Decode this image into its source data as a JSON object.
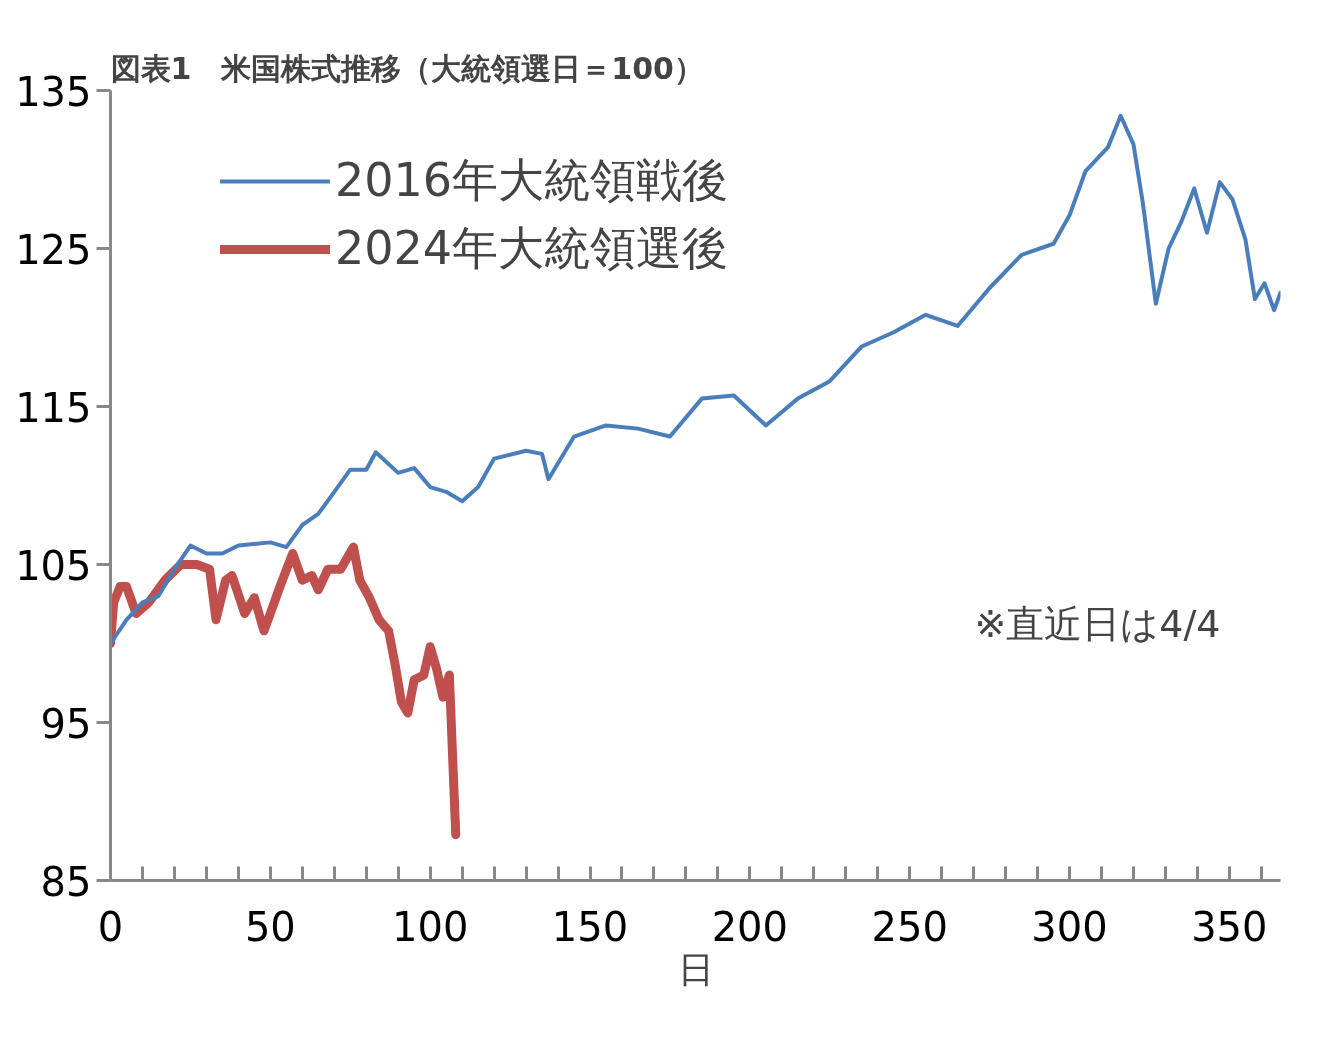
{
  "chart_data": {
    "type": "line",
    "title": "図表1　米国株式推移（大統領選日＝100）",
    "xlabel": "日",
    "xlim": [
      0,
      366
    ],
    "ylim": [
      85,
      135
    ],
    "xticks": [
      0,
      {
        "value": 10,
        "label": null
      },
      {
        "value": 20,
        "label": null
      },
      {
        "value": 30,
        "label": null
      },
      {
        "value": 40,
        "label": null
      },
      50,
      {
        "value": 60,
        "label": null
      },
      {
        "value": 70,
        "label": null
      },
      {
        "value": 80,
        "label": null
      },
      {
        "value": 90,
        "label": null
      },
      100,
      {
        "value": 110,
        "label": null
      },
      {
        "value": 120,
        "label": null
      },
      {
        "value": 130,
        "label": null
      },
      {
        "value": 140,
        "label": null
      },
      150,
      {
        "value": 160,
        "label": null
      },
      {
        "value": 170,
        "label": null
      },
      {
        "value": 180,
        "label": null
      },
      {
        "value": 190,
        "label": null
      },
      200,
      {
        "value": 210,
        "label": null
      },
      {
        "value": 220,
        "label": null
      },
      {
        "value": 230,
        "label": null
      },
      {
        "value": 240,
        "label": null
      },
      250,
      {
        "value": 260,
        "label": null
      },
      {
        "value": 270,
        "label": null
      },
      {
        "value": 280,
        "label": null
      },
      {
        "value": 290,
        "label": null
      },
      300,
      {
        "value": 310,
        "label": null
      },
      {
        "value": 320,
        "label": null
      },
      {
        "value": 330,
        "label": null
      },
      {
        "value": 340,
        "label": null
      },
      350,
      {
        "value": 360,
        "label": null
      }
    ],
    "yticks": [
      85,
      95,
      105,
      115,
      125,
      135
    ],
    "grid": false,
    "legend": "top left",
    "marker": "none",
    "line_style": "solid",
    "annotations": [
      "※直近日は4/4"
    ],
    "series": [
      {
        "name": "2016年大統領戦後",
        "color": "#4a7ebb",
        "x": [
          0,
          5,
          10,
          15,
          20,
          25,
          30,
          35,
          40,
          50,
          55,
          60,
          65,
          70,
          75,
          80,
          83,
          90,
          95,
          100,
          105,
          110,
          115,
          120,
          130,
          135,
          137,
          145,
          155,
          165,
          175,
          185,
          195,
          205,
          215,
          225,
          235,
          245,
          255,
          265,
          275,
          285,
          295,
          300,
          305,
          312,
          316,
          320,
          323,
          327,
          331,
          335,
          339,
          343,
          347,
          351,
          355,
          358,
          361,
          364,
          366
        ],
        "values": [
          100,
          101.5,
          102.6,
          103,
          104.7,
          106.2,
          105.7,
          105.7,
          106.2,
          106.4,
          106.1,
          107.5,
          108.2,
          109.6,
          111,
          111,
          112.1,
          110.8,
          111.1,
          109.9,
          109.6,
          109,
          109.9,
          111.7,
          112.2,
          112,
          110.4,
          113.1,
          113.8,
          113.6,
          113.1,
          115.5,
          115.7,
          113.8,
          115.5,
          116.6,
          118.8,
          119.7,
          120.8,
          120.1,
          122.5,
          124.6,
          125.3,
          127.1,
          129.9,
          131.4,
          133.4,
          131.6,
          127.8,
          121.5,
          125,
          126.7,
          128.8,
          126,
          129.2,
          128.1,
          125.6,
          121.8,
          122.8,
          121.1,
          122.2
        ]
      },
      {
        "name": "2024年大統領選後",
        "color": "#c0504d",
        "x": [
          0,
          1,
          3,
          5,
          8,
          12,
          17,
          22,
          27,
          31,
          33,
          36,
          38,
          42,
          45,
          48,
          50,
          53,
          57,
          60,
          63,
          65,
          68,
          72,
          76,
          78,
          81,
          84,
          87,
          89,
          91,
          93,
          95,
          98,
          100,
          102,
          104,
          106,
          108
        ],
        "values": [
          100,
          102.6,
          103.6,
          103.6,
          101.9,
          102.6,
          104,
          105,
          105,
          104.7,
          101.5,
          104,
          104.3,
          101.9,
          102.9,
          100.8,
          101.9,
          103.6,
          105.7,
          104,
          104.3,
          103.4,
          104.7,
          104.7,
          106.1,
          104,
          102.9,
          101.5,
          100.8,
          98.7,
          96.3,
          95.6,
          97.7,
          98,
          99.8,
          98.4,
          96.6,
          98,
          87.9
        ]
      }
    ]
  }
}
